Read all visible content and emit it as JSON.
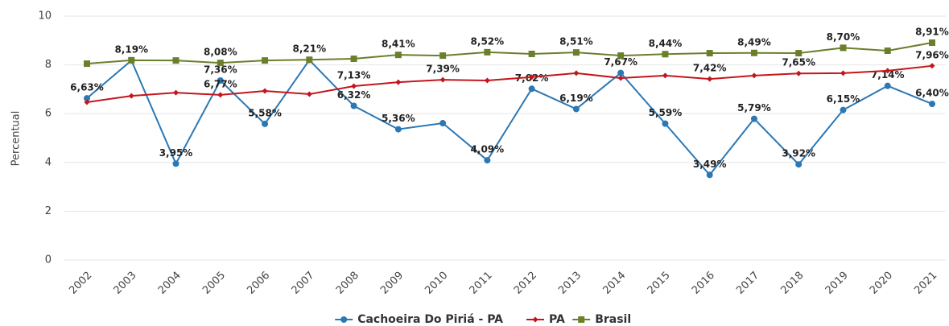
{
  "chart_data": {
    "type": "line",
    "y_label": "Percentual",
    "categories": [
      "2002",
      "2003",
      "2004",
      "2005",
      "2006",
      "2007",
      "2008",
      "2009",
      "2010",
      "2011",
      "2012",
      "2013",
      "2014",
      "2015",
      "2016",
      "2017",
      "2018",
      "2019",
      "2020",
      "2021"
    ],
    "ylim": [
      0,
      10
    ],
    "yticks": [
      0,
      2,
      4,
      6,
      8,
      10
    ],
    "grid": true,
    "legend": "bottom",
    "series": [
      {
        "name": "Cachoeira Do Piriá - PA",
        "color": "#2b78b5",
        "marker": "circle",
        "values": [
          6.63,
          8.18,
          3.95,
          7.36,
          5.58,
          8.2,
          6.32,
          5.36,
          5.61,
          4.09,
          7.02,
          6.19,
          7.67,
          5.59,
          3.49,
          5.79,
          3.92,
          6.15,
          7.14,
          6.4
        ],
        "value_labels": [
          "6,63%",
          null,
          "3,95%",
          "7,36%",
          "5,58%",
          null,
          "6,32%",
          "5,36%",
          null,
          "4,09%",
          "7,02%",
          "6,19%",
          "7,67%",
          "5,59%",
          "3,49%",
          "5,79%",
          "3,92%",
          "6,15%",
          "7,14%",
          "6,40%"
        ]
      },
      {
        "name": "PA",
        "color": "#c3161c",
        "marker": "diamond",
        "values": [
          6.47,
          6.73,
          6.86,
          6.77,
          6.93,
          6.8,
          7.13,
          7.29,
          7.39,
          7.36,
          7.5,
          7.66,
          7.46,
          7.56,
          7.42,
          7.56,
          7.65,
          7.66,
          7.76,
          7.96
        ],
        "value_labels": [
          null,
          null,
          null,
          "6,77%",
          null,
          null,
          "7,13%",
          null,
          "7,39%",
          null,
          null,
          null,
          null,
          null,
          "7,42%",
          null,
          "7,65%",
          null,
          null,
          "7,96%"
        ]
      },
      {
        "name": "Brasil",
        "color": "#6a7f2c",
        "marker": "square",
        "values": [
          8.05,
          8.19,
          8.18,
          8.08,
          8.18,
          8.21,
          8.25,
          8.41,
          8.38,
          8.52,
          8.45,
          8.51,
          8.38,
          8.44,
          8.48,
          8.49,
          8.48,
          8.7,
          8.58,
          8.91
        ],
        "value_labels": [
          null,
          "8,19%",
          null,
          "8,08%",
          null,
          "8,21%",
          null,
          "8,41%",
          null,
          "8,52%",
          null,
          "8,51%",
          null,
          "8,44%",
          null,
          "8,49%",
          null,
          "8,70%",
          null,
          "8,91%"
        ]
      }
    ]
  }
}
